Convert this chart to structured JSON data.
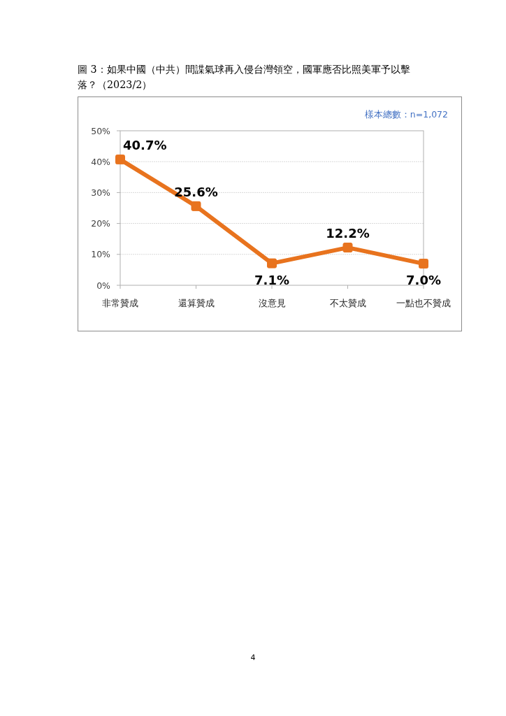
{
  "chart_data": {
    "type": "line",
    "title": "圖 3：如果中國（中共）間諜氣球再入侵台灣領空，國軍應否比照美軍予以擊落？（2023/2）",
    "categories": [
      "非常贊成",
      "還算贊成",
      "沒意見",
      "不太贊成",
      "一點也不贊成"
    ],
    "series": [
      {
        "color": "#e8731e",
        "values": [
          40.7,
          25.6,
          7.1,
          12.2,
          7.0
        ],
        "value_labels": [
          "40.7%",
          "25.6%",
          "7.1%",
          "12.2%",
          "7.0%"
        ]
      }
    ],
    "ylim": [
      0,
      50
    ],
    "yticks": [
      {
        "value": 0,
        "label": "0%"
      },
      {
        "value": 10,
        "label": "10%"
      },
      {
        "value": 20,
        "label": "20%"
      },
      {
        "value": 30,
        "label": "30%"
      },
      {
        "value": 40,
        "label": "40%"
      },
      {
        "value": 50,
        "label": "50%"
      }
    ],
    "grid": "y",
    "marker": "square",
    "line_style": "solid",
    "annotations": [
      "樣本總數：n=1,072",
      "4"
    ]
  }
}
